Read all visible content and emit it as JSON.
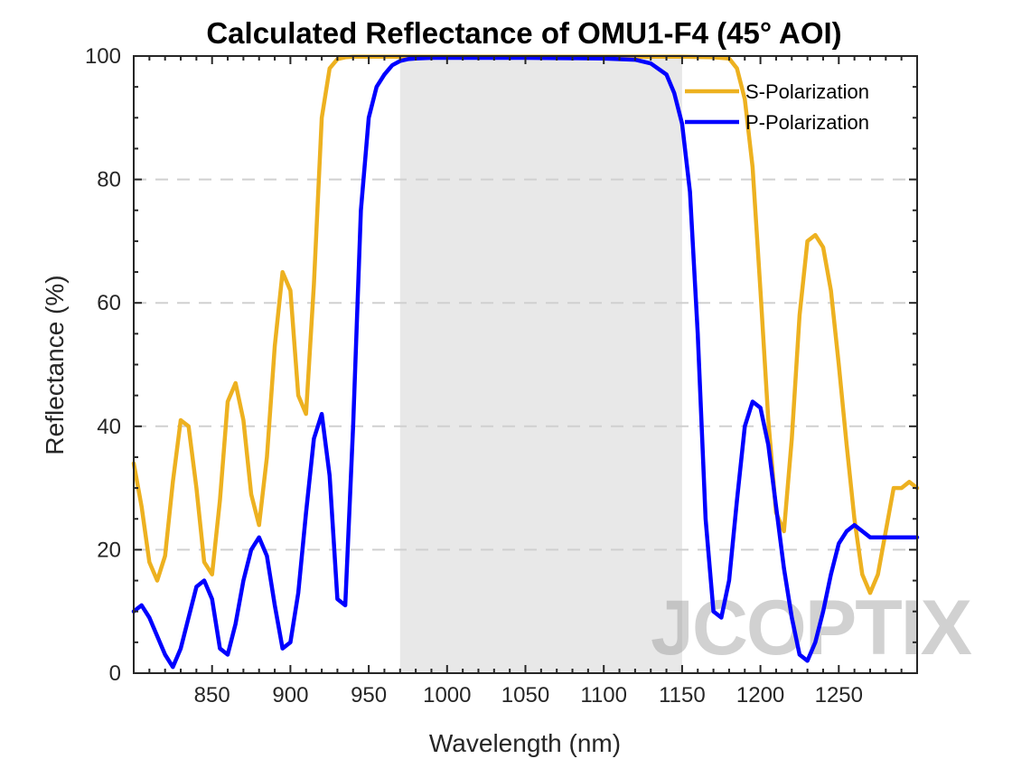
{
  "chart_data": {
    "type": "line",
    "title": "Calculated Reflectance of OMU1-F4 (45° AOI)",
    "xlabel": "Wavelength (nm)",
    "ylabel": "Reflectance (%)",
    "xlim": [
      800,
      1300
    ],
    "ylim": [
      0,
      100
    ],
    "xticks": [
      850,
      900,
      950,
      1000,
      1050,
      1100,
      1150,
      1200,
      1250
    ],
    "yticks": [
      0,
      20,
      40,
      60,
      80,
      100
    ],
    "grid": "horizontal dashed",
    "legend_position": "top-right",
    "shaded_band": {
      "x_start": 970,
      "x_end": 1150,
      "color": "#e8e8e8"
    },
    "watermark": "JCOPTIX",
    "series": [
      {
        "name": "S-Polarization",
        "color": "#EDB120",
        "x": [
          800,
          805,
          810,
          815,
          820,
          825,
          830,
          835,
          840,
          845,
          850,
          855,
          860,
          865,
          870,
          875,
          880,
          885,
          890,
          895,
          900,
          905,
          910,
          915,
          920,
          925,
          930,
          935,
          940,
          945,
          950,
          955,
          960,
          970,
          980,
          1000,
          1050,
          1100,
          1150,
          1170,
          1180,
          1185,
          1190,
          1195,
          1200,
          1205,
          1210,
          1215,
          1220,
          1225,
          1230,
          1235,
          1240,
          1245,
          1250,
          1255,
          1260,
          1265,
          1270,
          1275,
          1280,
          1285,
          1290,
          1295,
          1300
        ],
        "values": [
          34,
          27,
          18,
          15,
          19,
          31,
          41,
          40,
          30,
          18,
          16,
          28,
          44,
          47,
          41,
          29,
          24,
          35,
          53,
          65,
          62,
          45,
          42,
          63,
          90,
          98,
          99.5,
          99.8,
          99.9,
          99.9,
          99.9,
          99.9,
          99.9,
          99.9,
          99.9,
          99.9,
          99.9,
          99.9,
          99.9,
          99.8,
          99.6,
          98,
          93,
          82,
          62,
          41,
          26,
          23,
          38,
          58,
          70,
          71,
          69,
          62,
          50,
          37,
          25,
          16,
          13,
          16,
          23,
          30,
          30,
          31,
          30
        ]
      },
      {
        "name": "P-Polarization",
        "color": "#0000FF",
        "x": [
          800,
          805,
          810,
          815,
          820,
          825,
          830,
          835,
          840,
          845,
          850,
          855,
          860,
          865,
          870,
          875,
          880,
          885,
          890,
          895,
          900,
          905,
          910,
          915,
          920,
          925,
          930,
          935,
          940,
          945,
          950,
          955,
          960,
          965,
          970,
          975,
          980,
          990,
          1000,
          1050,
          1100,
          1120,
          1130,
          1140,
          1145,
          1150,
          1155,
          1160,
          1165,
          1170,
          1175,
          1180,
          1185,
          1190,
          1195,
          1200,
          1205,
          1210,
          1215,
          1220,
          1225,
          1230,
          1235,
          1240,
          1245,
          1250,
          1255,
          1260,
          1265,
          1270,
          1275,
          1280,
          1285,
          1290,
          1295,
          1300
        ],
        "values": [
          10,
          11,
          9,
          6,
          3,
          1,
          4,
          9,
          14,
          15,
          12,
          4,
          3,
          8,
          15,
          20,
          22,
          19,
          11,
          4,
          5,
          13,
          26,
          38,
          42,
          32,
          12,
          11,
          40,
          75,
          90,
          95,
          97,
          98.5,
          99.2,
          99.5,
          99.6,
          99.7,
          99.7,
          99.7,
          99.6,
          99.4,
          98.8,
          97,
          94,
          89,
          78,
          55,
          25,
          10,
          9,
          15,
          28,
          40,
          44,
          43,
          37,
          27,
          17,
          9,
          3,
          2,
          5,
          10,
          16,
          21,
          23,
          24,
          23,
          22,
          22,
          22,
          22,
          22,
          22,
          22
        ]
      }
    ]
  }
}
